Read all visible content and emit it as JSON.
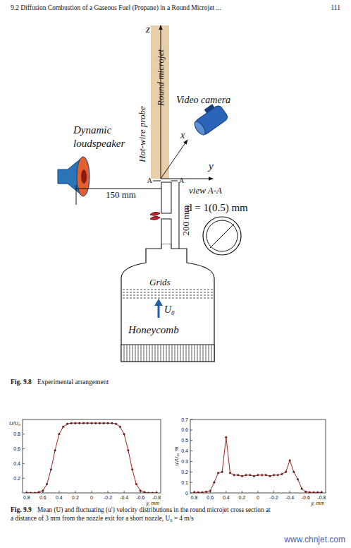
{
  "header": {
    "section": "9.2 Diffusion Combustion of a Gaseous Fuel (Propane) in a Round Microjet ...",
    "page": 111
  },
  "figure_9_8": {
    "labels": {
      "z": "z",
      "y": "y",
      "x": "x",
      "hot_wire_probe": "Hot-wire probe",
      "round_microjet": "Round microjet",
      "video_camera": "Video camera",
      "loudspeaker": [
        "Dynamic",
        "loudspeaker"
      ],
      "section_left": "A",
      "section_right": "A",
      "distance": "150 mm",
      "length": "200 mm",
      "view": "view A-A",
      "diameter": "d = 1(0.5) mm",
      "grids": "Grids",
      "flow": "U₀",
      "honeycomb": "Honeycomb"
    },
    "caption": {
      "label": "Fig. 9.8",
      "text": "Experimental arrangement"
    }
  },
  "chart_data": [
    {
      "type": "line",
      "x_label": "y, mm",
      "y_label": "U/U₀",
      "x": [
        0.8,
        0.75,
        0.7,
        0.65,
        0.6,
        0.55,
        0.5,
        0.45,
        0.4,
        0.35,
        0.3,
        0.25,
        0.2,
        0.15,
        0.1,
        0.05,
        0,
        -0.05,
        -0.1,
        -0.15,
        -0.2,
        -0.25,
        -0.3,
        -0.35,
        -0.4,
        -0.45,
        -0.5,
        -0.55,
        -0.6,
        -0.65,
        -0.7,
        -0.75,
        -0.8
      ],
      "xlim": [
        0.85,
        -0.85
      ],
      "xticks": [
        0.8,
        0.6,
        0.4,
        0.2,
        0,
        -0.2,
        -0.4,
        -0.6,
        -0.8
      ],
      "ylim": [
        0,
        1
      ],
      "yticks": [
        0.2,
        0.4,
        0.6,
        0.8
      ],
      "series": [
        {
          "color": "#a3201c",
          "marker": "circle",
          "values": [
            0,
            0,
            0,
            0.01,
            0.03,
            0.12,
            0.32,
            0.58,
            0.8,
            0.9,
            0.94,
            0.95,
            0.95,
            0.95,
            0.95,
            0.95,
            0.95,
            0.95,
            0.95,
            0.95,
            0.95,
            0.95,
            0.94,
            0.9,
            0.8,
            0.58,
            0.32,
            0.12,
            0.03,
            0.01,
            0,
            0,
            0
          ]
        }
      ]
    },
    {
      "type": "line",
      "x_label": "y, mm",
      "y_label": "u′/U₀, %",
      "x": [
        0.8,
        0.75,
        0.7,
        0.65,
        0.6,
        0.55,
        0.5,
        0.45,
        0.4,
        0.35,
        0.3,
        0.25,
        0.2,
        0.15,
        0.1,
        0.05,
        0,
        -0.05,
        -0.1,
        -0.15,
        -0.2,
        -0.25,
        -0.3,
        -0.35,
        -0.4,
        -0.45,
        -0.5,
        -0.55,
        -0.6,
        -0.65,
        -0.7,
        -0.75,
        -0.8
      ],
      "xlim": [
        0.85,
        -0.85
      ],
      "xticks": [
        0.8,
        0.6,
        0.4,
        0.2,
        0,
        -0.2,
        -0.4,
        -0.6,
        -0.8
      ],
      "ylim": [
        0,
        0.7
      ],
      "yticks": [
        0,
        0.1,
        0.2,
        0.3,
        0.4,
        0.5,
        0.6,
        0.7
      ],
      "series": [
        {
          "color": "#a3201c",
          "marker": "circle",
          "values": [
            0.005,
            0.005,
            0.005,
            0.01,
            0.02,
            0.1,
            0.19,
            0.2,
            0.53,
            0.19,
            0.17,
            0.17,
            0.16,
            0.17,
            0.17,
            0.16,
            0.17,
            0.17,
            0.17,
            0.16,
            0.17,
            0.17,
            0.18,
            0.2,
            0.31,
            0.2,
            0.13,
            0.04,
            0.01,
            0.005,
            0.005,
            0.005,
            0.005
          ]
        }
      ]
    }
  ],
  "figure_9_9_caption": {
    "label": "Fig. 9.9",
    "lines": [
      "Mean (U) and fluctuating (u′) velocity distributions in the round microjet cross section at",
      "a distance of 3 mm from the nozzle exit for a short nozzle, U₀ = 4 m/s"
    ]
  },
  "watermark": "www.chnjet.com"
}
